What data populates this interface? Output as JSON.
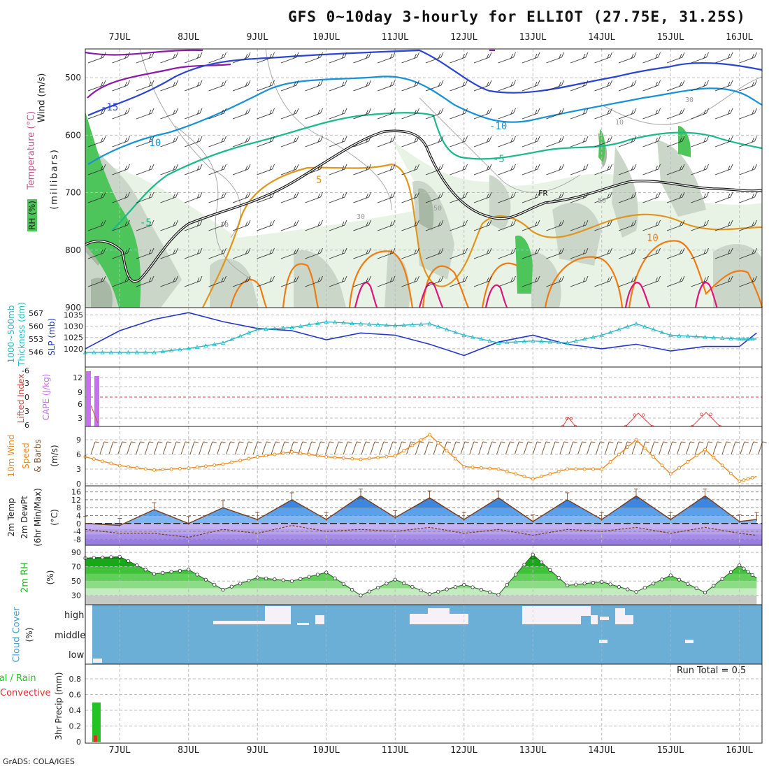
{
  "title": "GFS 0~10day 3-hourly for ELLIOT (27.75E, 31.25S)",
  "footer": "GrADS: COLA/IGES",
  "dates": [
    "7JUL",
    "8JUL",
    "9JUL",
    "10JUL",
    "11JUL",
    "12JUL",
    "13JUL",
    "14JUL",
    "15JUL",
    "16JUL"
  ],
  "colors": {
    "grid": "#bdbdbd",
    "rh_light": "#e8f3e6",
    "rh_mid": "#cad7c8",
    "rh_dark": "#a7b8a4",
    "rh_green": "#4ec55a",
    "temp_purple": "#8a1aa8",
    "temp_blue": "#2b45d1",
    "temp_cyan": "#1592d8",
    "temp_teal": "#1ab98a",
    "temp_orange": "#e0961e",
    "temp_dorange": "#ef7b12",
    "temp_magenta": "#e0137f",
    "slp": "#2536c8",
    "thickness": "#27b9c5",
    "cape": "#c96ef0",
    "li": "#e0413f",
    "wind10": "#ef8a1b",
    "barb": "#7a5536",
    "temp_fill": "#2f8ae5",
    "dew_fill": "#9b6fe3",
    "rh2m": "#22b722",
    "cloud": "#6baed6",
    "precip_total": "#22c322",
    "precip_conv": "#e0302c"
  },
  "panels": {
    "upper": {
      "ylabel_wind": "Wind (m/s)",
      "ylabel_temp": "Temperature (°C)",
      "ylabel_mb": "(millibars)",
      "ylabel_rh": "RH (%)",
      "yticks": [
        "500",
        "600",
        "700",
        "800",
        "900"
      ],
      "contour_labels": [
        "-15",
        "-10",
        "-10",
        "-5",
        "-5",
        "5",
        "10",
        "FR",
        "30",
        "30",
        "50",
        "50",
        "10",
        "10"
      ]
    },
    "slp": {
      "ylabel_thick": "1000~500mb",
      "ylabel_thick2": "Thickness (dm)",
      "ylabel_slp": "SLP (mb)",
      "left_ticks": [
        "567",
        "560",
        "553",
        "546"
      ],
      "right_ticks": [
        "1035",
        "1030",
        "1025",
        "1020"
      ]
    },
    "cape": {
      "ylabel_li": "Lifted Index",
      "ylabel_cape": "CAPE (J/kg)",
      "left_ticks": [
        "-6",
        "-3",
        "0",
        "3",
        "6"
      ],
      "right_ticks": [
        "12",
        "9",
        "6",
        "3"
      ]
    },
    "wind": {
      "ylabel1": "10m Wind",
      "ylabel2": "Speed",
      "ylabel3": "& Barbs",
      "unit": "(m/s)",
      "yticks": [
        "9",
        "6",
        "3",
        "0"
      ]
    },
    "temp": {
      "ylabel1": "2m Temp",
      "ylabel2": "2m DewPt",
      "ylabel3": "(6hr Min/Max)",
      "unit": "(°C)",
      "yticks": [
        "16",
        "12",
        "8",
        "4",
        "0",
        "-4",
        "-8"
      ]
    },
    "rh": {
      "ylabel": "2m RH",
      "unit": "(%)",
      "yticks": [
        "90",
        "70",
        "50",
        "30"
      ]
    },
    "cloud": {
      "ylabel": "Cloud Cover",
      "unit": "(%)",
      "levels": [
        "high",
        "middle",
        "low"
      ]
    },
    "precip": {
      "ylabel1": "Total / Rain",
      "ylabel2": "Convective",
      "ylabel3": "3hr Precip (mm)",
      "yticks": [
        "0.8",
        "0.6",
        "0.4",
        "0.2",
        "0"
      ],
      "run_total": "Run Total = 0.5"
    }
  },
  "chart_data": [
    {
      "type": "line",
      "title": "SLP (mb) and 1000~500mb Thickness (dm)",
      "x": [
        "6JUL12",
        "7JUL00",
        "7JUL12",
        "8JUL00",
        "8JUL12",
        "9JUL00",
        "9JUL12",
        "10JUL00",
        "10JUL12",
        "11JUL00",
        "11JUL12",
        "12JUL00",
        "12JUL12",
        "13JUL00",
        "13JUL12",
        "14JUL00",
        "14JUL12",
        "15JUL00",
        "15JUL12",
        "16JUL00",
        "16JUL06"
      ],
      "series": [
        {
          "name": "SLP (mb)",
          "values": [
            1020,
            1028,
            1033,
            1036,
            1032,
            1029,
            1028,
            1024,
            1027,
            1026,
            1022,
            1017,
            1023,
            1026,
            1022,
            1020,
            1022,
            1019,
            1021,
            1021,
            1027
          ]
        },
        {
          "name": "Thickness (dm)",
          "values": [
            546,
            546,
            546,
            548,
            551,
            558,
            559,
            562,
            561,
            560,
            561,
            555,
            551,
            552,
            551,
            555,
            561,
            555,
            554,
            553,
            553
          ]
        }
      ]
    },
    {
      "type": "line",
      "title": "10m Wind Speed (m/s)",
      "x": [
        "6JUL12",
        "7JUL00",
        "7JUL12",
        "8JUL00",
        "8JUL12",
        "9JUL00",
        "9JUL12",
        "10JUL00",
        "10JUL12",
        "11JUL00",
        "11JUL12",
        "12JUL00",
        "12JUL12",
        "13JUL00",
        "13JUL12",
        "14JUL00",
        "14JUL12",
        "15JUL00",
        "15JUL12",
        "16JUL00",
        "16JUL06"
      ],
      "values": [
        5.5,
        3.7,
        2.8,
        3.2,
        4.0,
        5.5,
        6.5,
        5.5,
        5.0,
        5.7,
        10.0,
        3.5,
        3.0,
        1.0,
        3.0,
        3.0,
        9.0,
        2.0,
        7.0,
        0.5,
        1.5
      ],
      "ylim": [
        0,
        11
      ]
    },
    {
      "type": "area",
      "title": "2m Temp and 2m DewPt (°C)",
      "x": [
        "6JUL12",
        "7JUL00",
        "7JUL12",
        "8JUL00",
        "8JUL12",
        "9JUL00",
        "9JUL12",
        "10JUL00",
        "10JUL12",
        "11JUL00",
        "11JUL12",
        "12JUL00",
        "12JUL12",
        "13JUL00",
        "13JUL12",
        "14JUL00",
        "14JUL12",
        "15JUL00",
        "15JUL12",
        "16JUL00",
        "16JUL06"
      ],
      "series": [
        {
          "name": "2m Temp",
          "values": [
            0,
            -1,
            7,
            0,
            8,
            2,
            12,
            2,
            14,
            3,
            13,
            2,
            13,
            1,
            12,
            2,
            14,
            2,
            14,
            1,
            2
          ]
        },
        {
          "name": "2m DewPt",
          "values": [
            -3,
            -5,
            -5,
            -7,
            -3,
            -5,
            -1,
            -4,
            -3,
            -4,
            -2,
            -5,
            -3,
            -6,
            -3,
            -4,
            -2,
            -5,
            -2,
            -5,
            -6
          ]
        }
      ],
      "ylim": [
        -10,
        18
      ]
    },
    {
      "type": "area",
      "title": "2m RH (%)",
      "x": [
        "6JUL12",
        "7JUL00",
        "7JUL12",
        "8JUL00",
        "8JUL12",
        "9JUL00",
        "9JUL12",
        "10JUL00",
        "10JUL12",
        "11JUL00",
        "11JUL12",
        "12JUL00",
        "12JUL12",
        "13JUL00",
        "13JUL12",
        "14JUL00",
        "14JUL12",
        "15JUL00",
        "15JUL12",
        "16JUL00",
        "16JUL06"
      ],
      "values": [
        82,
        84,
        60,
        66,
        38,
        55,
        50,
        62,
        30,
        52,
        32,
        45,
        31,
        87,
        44,
        49,
        35,
        58,
        34,
        72,
        54
      ],
      "ylim": [
        20,
        95
      ]
    },
    {
      "type": "bar",
      "title": "3hr Precip (mm)",
      "categories": [
        "6JUL12"
      ],
      "series": [
        {
          "name": "Total / Rain",
          "values": [
            0.5
          ]
        },
        {
          "name": "Convective",
          "values": [
            0.08
          ]
        }
      ],
      "ylim": [
        0,
        0.95
      ]
    }
  ]
}
